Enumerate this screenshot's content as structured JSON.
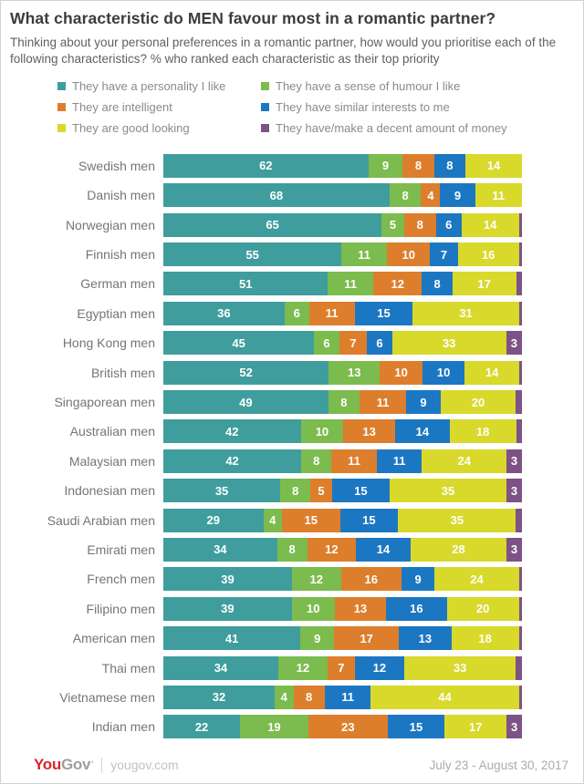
{
  "header": {
    "title": "What characteristic do MEN favour most in a romantic partner?",
    "subtitle": "Thinking about your personal preferences in a romantic partner, how would you prioritise each of the following characteristics? % who ranked each characteristic as their top priority"
  },
  "footer": {
    "brand_you": "You",
    "brand_gov": "Gov",
    "site": "yougov.com",
    "date_range": "July 23 - August 30, 2017"
  },
  "colors": {
    "personality": "#3f9d9d",
    "humour": "#7cbb4d",
    "intelligent": "#dd7e2c",
    "interests": "#1c77c2",
    "looks": "#d8d92b",
    "money": "#7d5286",
    "bar_value_text": "#ffffff"
  },
  "chart_data": {
    "type": "bar",
    "stacked": true,
    "orientation": "horizontal",
    "unit": "%",
    "xlim": [
      0,
      100
    ],
    "grid": false,
    "legend_position": "top",
    "min_value_for_label": 3,
    "title": "What characteristic do MEN favour most in a romantic partner?",
    "segments": [
      {
        "key": "personality",
        "label": "They have a personality I like",
        "color": "#3f9d9d"
      },
      {
        "key": "humour",
        "label": "They have a sense of humour I like",
        "color": "#7cbb4d"
      },
      {
        "key": "intelligent",
        "label": "They are intelligent",
        "color": "#dd7e2c"
      },
      {
        "key": "interests",
        "label": "They have similar interests to me",
        "color": "#1c77c2"
      },
      {
        "key": "looks",
        "label": "They are good looking",
        "color": "#d8d92b"
      },
      {
        "key": "money",
        "label": "They have/make a decent amount of money",
        "color": "#7d5286"
      }
    ],
    "rows": [
      {
        "label": "Swedish men",
        "values": [
          62,
          9,
          8,
          8,
          14,
          0
        ]
      },
      {
        "label": "Danish men",
        "values": [
          68,
          8,
          4,
          9,
          11,
          0
        ]
      },
      {
        "label": "Norwegian men",
        "values": [
          65,
          5,
          8,
          6,
          14,
          1
        ]
      },
      {
        "label": "Finnish men",
        "values": [
          55,
          11,
          10,
          7,
          16,
          1
        ]
      },
      {
        "label": "German men",
        "values": [
          51,
          11,
          12,
          8,
          17,
          2
        ]
      },
      {
        "label": "Egyptian men",
        "values": [
          36,
          6,
          11,
          15,
          31,
          1
        ]
      },
      {
        "label": "Hong Kong men",
        "values": [
          45,
          6,
          7,
          6,
          33,
          3
        ]
      },
      {
        "label": "British men",
        "values": [
          52,
          13,
          10,
          10,
          14,
          1
        ]
      },
      {
        "label": "Singaporean men",
        "values": [
          49,
          8,
          11,
          9,
          20,
          2
        ]
      },
      {
        "label": "Australian men",
        "values": [
          42,
          10,
          13,
          14,
          18,
          2
        ]
      },
      {
        "label": "Malaysian men",
        "values": [
          42,
          8,
          11,
          11,
          24,
          3
        ]
      },
      {
        "label": "Indonesian men",
        "values": [
          35,
          8,
          5,
          15,
          35,
          3
        ]
      },
      {
        "label": "Saudi Arabian men",
        "values": [
          29,
          4,
          15,
          15,
          35,
          2
        ]
      },
      {
        "label": "Emirati men",
        "values": [
          34,
          8,
          12,
          14,
          28,
          3
        ]
      },
      {
        "label": "French men",
        "values": [
          39,
          12,
          16,
          9,
          24,
          1
        ]
      },
      {
        "label": "Filipino men",
        "values": [
          39,
          10,
          13,
          16,
          20,
          1
        ]
      },
      {
        "label": "American men",
        "values": [
          41,
          9,
          17,
          13,
          18,
          1
        ]
      },
      {
        "label": "Thai men",
        "values": [
          34,
          12,
          7,
          12,
          33,
          2
        ]
      },
      {
        "label": "Vietnamese men",
        "values": [
          32,
          4,
          8,
          11,
          44,
          1
        ]
      },
      {
        "label": "Indian men",
        "values": [
          22,
          19,
          23,
          15,
          17,
          3
        ]
      }
    ]
  }
}
